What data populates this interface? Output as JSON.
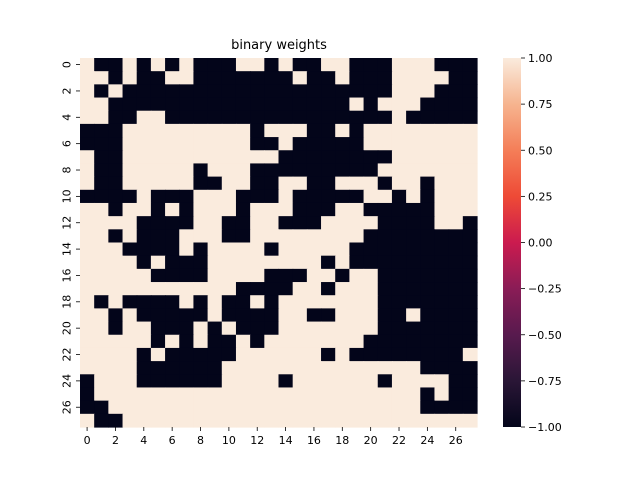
{
  "chart_data": {
    "type": "heatmap",
    "title": "binary weights",
    "rows": 28,
    "cols": 28,
    "x_tick_labels": [
      "0",
      "2",
      "4",
      "6",
      "8",
      "10",
      "12",
      "14",
      "16",
      "18",
      "20",
      "22",
      "24",
      "26"
    ],
    "y_tick_labels": [
      "0",
      "2",
      "4",
      "6",
      "8",
      "10",
      "12",
      "14",
      "16",
      "18",
      "20",
      "22",
      "24",
      "26"
    ],
    "colorbar": {
      "vmin": -1.0,
      "vmax": 1.0,
      "tick_labels": [
        "1.00",
        "0.75",
        "0.50",
        "0.25",
        "0.00",
        "−0.25",
        "−0.50",
        "−0.75",
        "−1.00"
      ],
      "tick_values": [
        1.0,
        0.75,
        0.5,
        0.25,
        0.0,
        -0.25,
        -0.5,
        -0.75,
        -1.0
      ],
      "colormap": "rocket"
    },
    "values": [
      "1001010100011010011000111000",
      "1101001100000001001000111100",
      "1010000000000000000000111000",
      "1100000000000000000101110000",
      "1100110000000000000000100000",
      "0001111111110111001011111111",
      "0001111111110010000011111111",
      "1001111111111100000000111111",
      "1001111101110000000001111111",
      "1001111100110011001110110111",
      "0000100011100010000011010111",
      "1101101011101110001100000111",
      "1111000011001100011110000110",
      "1101000111001111111100000000",
      "1110000101111011111000000000",
      "1111010001111111101000000000",
      "1111100001111000110110000000",
      "1111111111100001101110000000",
      "1010000101001011111110000000",
      "1101000001000011001110010000",
      "1101100010100011111110000000",
      "1111101010010111111100000000",
      "1111010000011111101000000001",
      "1111000000111111111111110000",
      "0111000000111101111110111100",
      "0111111111111111111111110100",
      "0011111111111111111111110000",
      "1001111111111111111111111111"
    ]
  }
}
